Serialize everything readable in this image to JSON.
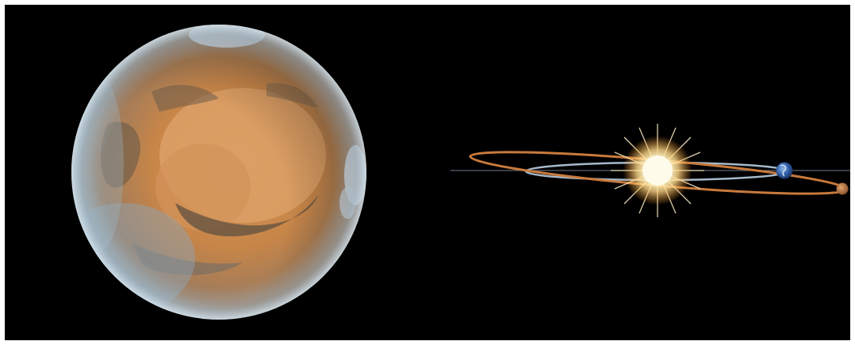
{
  "image": {
    "background_color": "#000000",
    "frame_color": "#ffffff",
    "panels": [
      {
        "name": "mars-photo",
        "subject": "planet-mars",
        "colors": {
          "surface": "#c9874a",
          "dark_terrain": "#6b5a47",
          "haze": "#a9c3d6",
          "clouds": "#e8f0f7"
        }
      },
      {
        "name": "orbit-diagram",
        "subject": "sun-earth-mars-orbits",
        "colors": {
          "sun": "#fff6d8",
          "mars_orbit": "#c87a3c",
          "earth_orbit": "#b8cde0",
          "earth": "#2f5fa8",
          "mars": "#c27a45",
          "ecliptic_line": "#5a6270"
        }
      }
    ]
  }
}
